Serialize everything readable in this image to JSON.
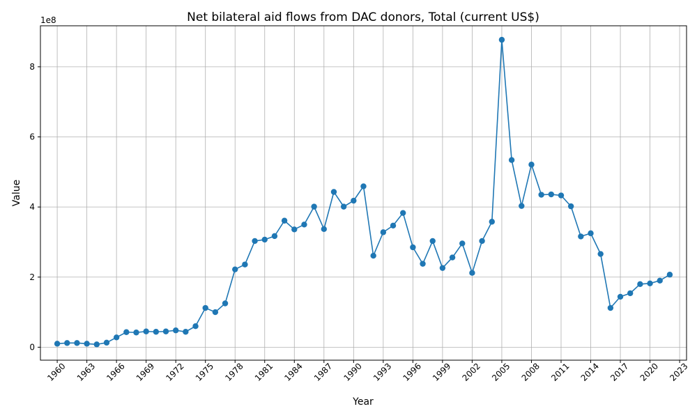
{
  "chart_data": {
    "type": "line",
    "title": "Net bilateral aid flows from DAC donors, Total (current US$)",
    "xlabel": "Year",
    "ylabel": "Value",
    "y_multiplier": "1e8",
    "xlim": [
      1958.3,
      2023.7
    ],
    "ylim": [
      -0.37,
      9.17
    ],
    "x_ticks": [
      1960,
      1963,
      1966,
      1969,
      1972,
      1975,
      1978,
      1981,
      1984,
      1987,
      1990,
      1993,
      1996,
      1999,
      2002,
      2005,
      2008,
      2011,
      2014,
      2017,
      2020,
      2023
    ],
    "y_ticks": [
      0,
      2,
      4,
      6,
      8
    ],
    "grid": true,
    "line_color": "#1f77b4",
    "series": [
      {
        "x": [
          1960,
          1961,
          1962,
          1963,
          1964,
          1965,
          1966,
          1967,
          1968,
          1969,
          1970,
          1971,
          1972,
          1973,
          1974,
          1975,
          1976,
          1977,
          1978,
          1979,
          1980,
          1981,
          1982,
          1983,
          1984,
          1985,
          1986,
          1987,
          1988,
          1989,
          1990,
          1991,
          1992,
          1993,
          1994,
          1995,
          1996,
          1997,
          1998,
          1999,
          2000,
          2001,
          2002,
          2003,
          2004,
          2005,
          2006,
          2007,
          2008,
          2009,
          2010,
          2011,
          2012,
          2013,
          2014,
          2015,
          2016,
          2017,
          2018,
          2019,
          2020,
          2021,
          2022
        ],
        "values": [
          0.1,
          0.12,
          0.12,
          0.1,
          0.08,
          0.13,
          0.28,
          0.43,
          0.42,
          0.45,
          0.44,
          0.45,
          0.48,
          0.44,
          0.6,
          1.12,
          1.0,
          1.25,
          2.22,
          2.36,
          3.03,
          3.07,
          3.17,
          3.61,
          3.36,
          3.5,
          4.01,
          3.37,
          4.43,
          4.01,
          4.18,
          4.59,
          2.61,
          3.28,
          3.47,
          3.83,
          2.85,
          2.38,
          3.03,
          2.26,
          2.56,
          2.96,
          2.12,
          3.03,
          3.58,
          8.77,
          5.34,
          4.03,
          5.21,
          4.35,
          4.36,
          4.33,
          4.02,
          3.16,
          3.25,
          2.66,
          1.12,
          1.44,
          1.54,
          1.8,
          1.82,
          1.9,
          2.07
        ]
      }
    ]
  }
}
